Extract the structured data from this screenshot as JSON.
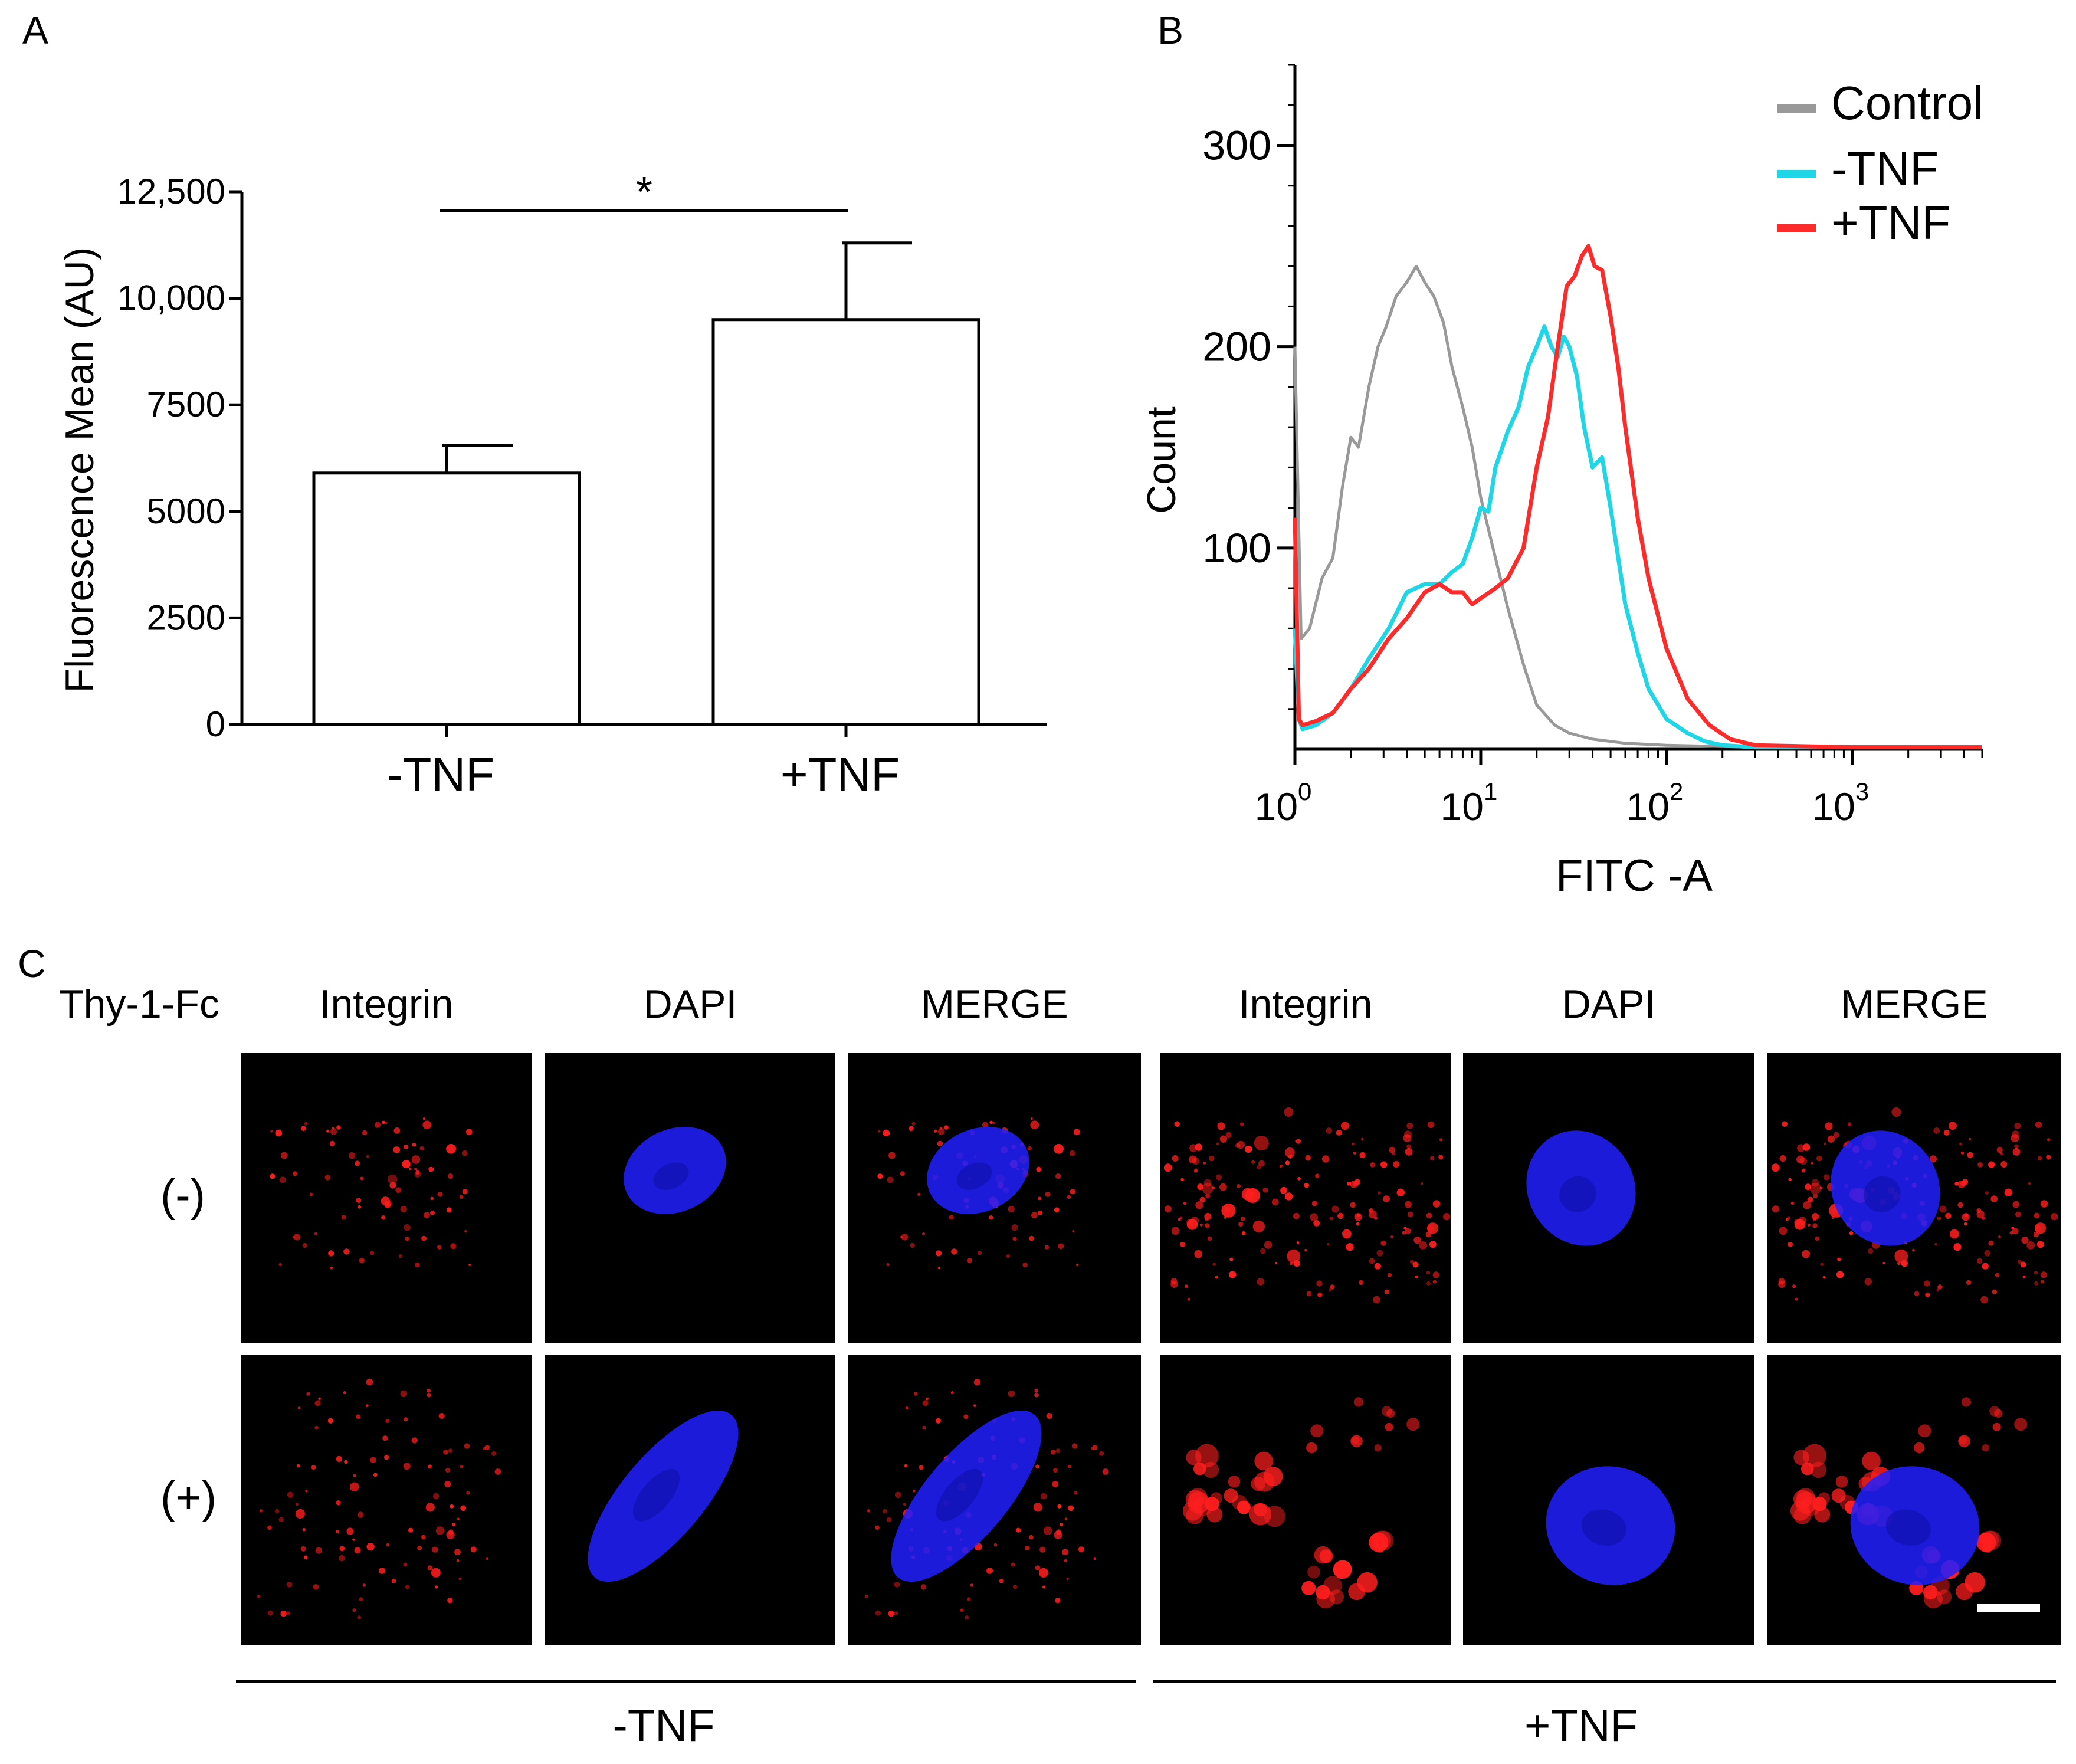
{
  "panels": {
    "a": "A",
    "b": "B",
    "c": "C"
  },
  "colors": {
    "control": "#999999",
    "minus_tnf": "#1fd6e6",
    "plus_tnf": "#ff2a2a",
    "integrin": "#ff1e1e",
    "dapi": "#2020ff"
  },
  "chart_data": [
    {
      "type": "bar",
      "panel": "A",
      "categories": [
        "-TNF",
        "+TNF"
      ],
      "values": [
        5900,
        9500
      ],
      "errors": [
        650,
        1800
      ],
      "ylabel": "Fluorescence Mean (AU)",
      "ylim": [
        0,
        12500
      ],
      "yticks": [
        0,
        2500,
        5000,
        7500,
        10000,
        12500
      ],
      "ytick_labels": [
        "0",
        "2500",
        "5000",
        "7500",
        "10,000",
        "12,500"
      ],
      "significance": "*"
    },
    {
      "type": "line",
      "panel": "B",
      "xlabel": "FITC -A",
      "ylabel": "Count",
      "xscale": "log",
      "xlim": [
        1,
        5000
      ],
      "ylim": [
        0,
        340
      ],
      "yticks": [
        100,
        200,
        300
      ],
      "xtick_base": "10",
      "xtick_exponents": [
        "0",
        "1",
        "2",
        "3"
      ],
      "legend_position": "top-right",
      "series": [
        {
          "name": "Control",
          "color": "#999999",
          "x": [
            1,
            1.08,
            1.2,
            1.4,
            1.6,
            1.8,
            2.0,
            2.2,
            2.5,
            2.8,
            3.1,
            3.5,
            4.0,
            4.5,
            5.0,
            5.6,
            6.3,
            7.0,
            8.0,
            9.0,
            10,
            12,
            14,
            17,
            20,
            25,
            30,
            40,
            60,
            100,
            300,
            1000,
            5000
          ],
          "y": [
            200,
            55,
            60,
            85,
            95,
            130,
            155,
            150,
            180,
            200,
            210,
            225,
            232,
            240,
            232,
            225,
            212,
            190,
            170,
            150,
            125,
            95,
            70,
            42,
            22,
            12,
            8,
            5,
            3,
            2,
            1,
            1,
            1
          ]
        },
        {
          "name": "-TNF",
          "color": "#1fd6e6",
          "x": [
            1,
            1.05,
            1.1,
            1.3,
            1.6,
            2.0,
            2.5,
            3.2,
            4.0,
            5.0,
            6.0,
            7.0,
            8.0,
            9.0,
            10,
            11,
            12,
            14,
            16,
            18,
            20,
            22,
            24,
            26,
            28,
            30,
            33,
            36,
            40,
            45,
            50,
            55,
            60,
            70,
            80,
            100,
            130,
            160,
            200,
            300,
            1000,
            5000
          ],
          "y": [
            60,
            15,
            10,
            12,
            18,
            30,
            45,
            60,
            78,
            82,
            82,
            88,
            92,
            105,
            120,
            118,
            140,
            158,
            170,
            190,
            200,
            210,
            200,
            195,
            205,
            200,
            185,
            160,
            140,
            145,
            120,
            95,
            72,
            48,
            30,
            15,
            8,
            4,
            2,
            1,
            1,
            1
          ]
        },
        {
          "name": "+TNF",
          "color": "#ff2a2a",
          "x": [
            1,
            1.05,
            1.1,
            1.3,
            1.6,
            2.0,
            2.5,
            3.2,
            4.0,
            5.0,
            6.0,
            7.0,
            8.0,
            9.0,
            10,
            12,
            14,
            17,
            20,
            23,
            26,
            29,
            32,
            35,
            38,
            41,
            45,
            50,
            55,
            60,
            70,
            80,
            100,
            130,
            170,
            220,
            300,
            1000,
            5000
          ],
          "y": [
            115,
            15,
            12,
            14,
            18,
            30,
            40,
            55,
            65,
            78,
            82,
            78,
            78,
            72,
            75,
            80,
            85,
            100,
            140,
            165,
            200,
            230,
            235,
            245,
            250,
            240,
            238,
            215,
            190,
            160,
            115,
            85,
            50,
            25,
            12,
            5,
            2,
            1,
            1
          ]
        }
      ]
    }
  ],
  "micrographs": {
    "title": "Thy-1-Fc",
    "columns": [
      "Integrin",
      "DAPI",
      "MERGE",
      "Integrin",
      "DAPI",
      "MERGE"
    ],
    "rows": [
      "(-)",
      "(+)"
    ],
    "groups": [
      "-TNF",
      "+TNF"
    ]
  }
}
